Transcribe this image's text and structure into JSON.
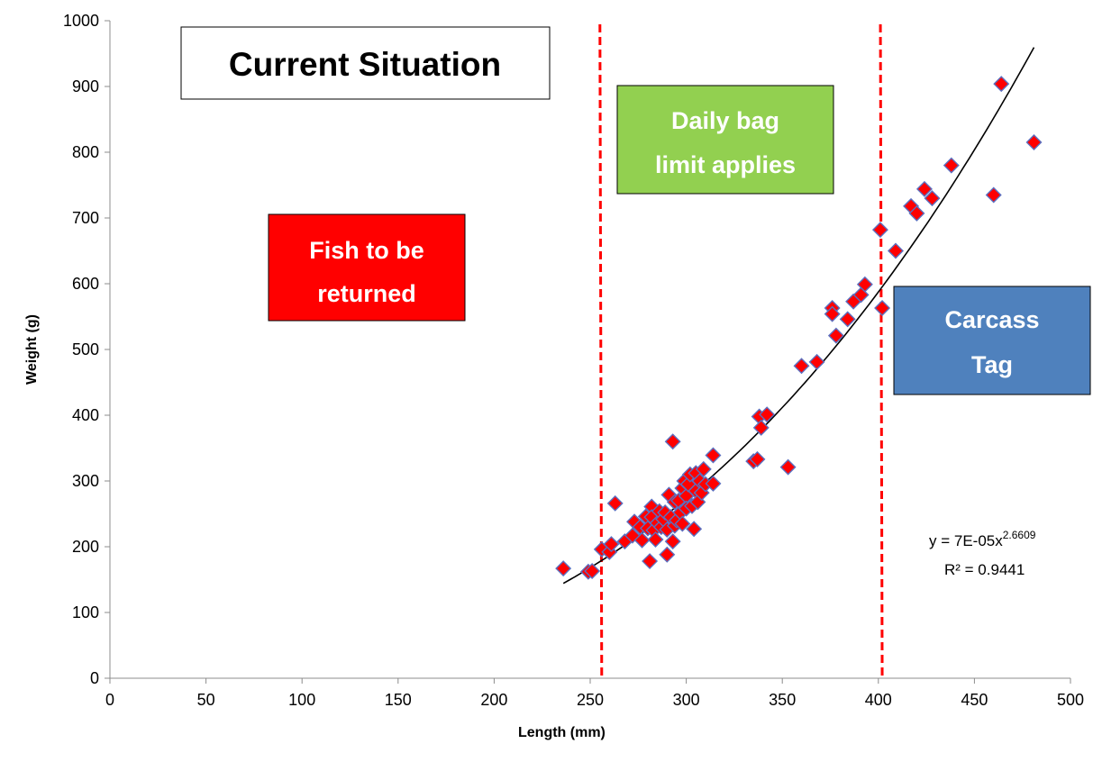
{
  "chart_data": {
    "type": "scatter",
    "title": "",
    "xlabel": "Length (mm)",
    "ylabel": "Weight (g)",
    "xlim": [
      0,
      500
    ],
    "ylim": [
      0,
      1000
    ],
    "xticks": [
      "0",
      "50",
      "100",
      "150",
      "200",
      "250",
      "300",
      "350",
      "400",
      "450",
      "500"
    ],
    "yticks": [
      "0",
      "100",
      "200",
      "300",
      "400",
      "500",
      "600",
      "700",
      "800",
      "900",
      "1000"
    ],
    "grid": false,
    "legend": "none",
    "colors": {
      "marker_fill": "#ff0000",
      "marker_stroke": "#5b6fbf",
      "trendline": "#000000",
      "limit_line": "#ff0000"
    },
    "series": [
      {
        "points": [
          [
            236,
            167
          ],
          [
            249,
            162
          ],
          [
            251,
            163
          ],
          [
            256,
            196
          ],
          [
            260,
            192
          ],
          [
            261,
            204
          ],
          [
            263,
            266
          ],
          [
            268,
            208
          ],
          [
            272,
            217
          ],
          [
            273,
            238
          ],
          [
            276,
            230
          ],
          [
            277,
            210
          ],
          [
            279,
            246
          ],
          [
            280,
            228
          ],
          [
            281,
            178
          ],
          [
            282,
            261
          ],
          [
            282,
            245
          ],
          [
            283,
            225
          ],
          [
            284,
            211
          ],
          [
            285,
            236
          ],
          [
            286,
            254
          ],
          [
            287,
            230
          ],
          [
            288,
            242
          ],
          [
            289,
            252
          ],
          [
            290,
            188
          ],
          [
            290,
            226
          ],
          [
            291,
            279
          ],
          [
            292,
            245
          ],
          [
            293,
            360
          ],
          [
            293,
            208
          ],
          [
            294,
            268
          ],
          [
            294,
            232
          ],
          [
            295,
            240
          ],
          [
            296,
            270
          ],
          [
            297,
            252
          ],
          [
            298,
            289
          ],
          [
            298,
            235
          ],
          [
            299,
            300
          ],
          [
            300,
            277
          ],
          [
            300,
            258
          ],
          [
            301,
            295
          ],
          [
            302,
            310
          ],
          [
            303,
            262
          ],
          [
            304,
            227
          ],
          [
            305,
            285
          ],
          [
            305,
            312
          ],
          [
            306,
            268
          ],
          [
            307,
            300
          ],
          [
            308,
            282
          ],
          [
            309,
            318
          ],
          [
            310,
            295
          ],
          [
            314,
            339
          ],
          [
            314,
            296
          ],
          [
            335,
            330
          ],
          [
            337,
            333
          ],
          [
            338,
            398
          ],
          [
            339,
            381
          ],
          [
            342,
            401
          ],
          [
            353,
            321
          ],
          [
            360,
            475
          ],
          [
            368,
            481
          ],
          [
            376,
            563
          ],
          [
            376,
            554
          ],
          [
            378,
            521
          ],
          [
            384,
            546
          ],
          [
            387,
            573
          ],
          [
            391,
            583
          ],
          [
            393,
            599
          ],
          [
            401,
            682
          ],
          [
            402,
            563
          ],
          [
            409,
            650
          ],
          [
            417,
            718
          ],
          [
            420,
            707
          ],
          [
            424,
            744
          ],
          [
            428,
            730
          ],
          [
            438,
            780
          ],
          [
            460,
            735
          ],
          [
            464,
            904
          ],
          [
            481,
            815
          ]
        ]
      }
    ],
    "trendline": {
      "type": "power",
      "a": 7e-05,
      "b": 2.6609,
      "x_range": [
        236,
        481
      ],
      "equation_base": "y = 7E-05x",
      "equation_exponent": "2.6609",
      "r_squared": "R² = 0.9441"
    },
    "limit_lines_x": [
      256,
      402
    ],
    "annotations": {
      "title_box": "Current Situation",
      "red_box": [
        "Fish to be",
        "returned"
      ],
      "green_box": [
        "Daily bag",
        "limit applies"
      ],
      "blue_box": [
        "Carcass",
        "Tag"
      ]
    }
  }
}
